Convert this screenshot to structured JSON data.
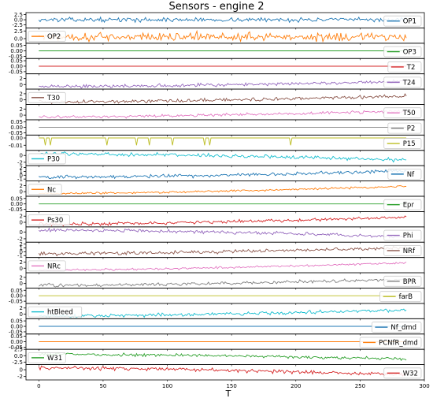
{
  "chart_data": {
    "type": "line",
    "title": "Sensors - engine 2",
    "xlabel": "T",
    "xlim": [
      -10,
      300
    ],
    "x_ticks": [
      0,
      50,
      100,
      150,
      200,
      250,
      300
    ],
    "n_cycles": 287,
    "grid": false,
    "legend_placement": "per-panel",
    "panels": [
      {
        "name": "OP1",
        "color": "#1f77b4",
        "legend_side": "right",
        "yticks": [
          2.5,
          0.0,
          -2.5
        ],
        "ylim": [
          -4,
          3.5
        ],
        "profile": {
          "base": 0,
          "trend": 0,
          "noise": 1.1,
          "spikes": []
        }
      },
      {
        "name": "OP2",
        "color": "#ff7f0e",
        "legend_side": "left",
        "yticks": [
          2.5,
          0.0
        ],
        "ylim": [
          -1.5,
          3.5
        ],
        "profile": {
          "base": 0.6,
          "trend": 0,
          "noise": 1.5,
          "spikes": []
        }
      },
      {
        "name": "OP3",
        "color": "#2ca02c",
        "legend_side": "right",
        "yticks": [
          0.05,
          0.0,
          -0.05
        ],
        "ylim": [
          -0.07,
          0.07
        ],
        "profile": {
          "base": 0,
          "trend": 0,
          "noise": 0,
          "spikes": []
        }
      },
      {
        "name": "T2",
        "color": "#d62728",
        "legend_side": "right",
        "yticks": [
          0.05,
          0.0,
          -0.05
        ],
        "ylim": [
          -0.07,
          0.07
        ],
        "profile": {
          "base": 0,
          "trend": 0,
          "noise": 0,
          "spikes": []
        }
      },
      {
        "name": "T24",
        "color": "#9467bd",
        "legend_side": "right",
        "yticks": [
          2,
          0
        ],
        "ylim": [
          -1.5,
          3.5
        ],
        "profile": {
          "base": -0.6,
          "trend": 1.6,
          "noise": 0.6,
          "spikes": []
        }
      },
      {
        "name": "T30",
        "color": "#8c564b",
        "legend_side": "left",
        "yticks": [
          2,
          0
        ],
        "ylim": [
          -1.5,
          3.5
        ],
        "profile": {
          "base": -0.7,
          "trend": 2.0,
          "noise": 0.6,
          "spikes": []
        }
      },
      {
        "name": "T50",
        "color": "#e377c2",
        "legend_side": "right",
        "yticks": [
          2,
          0
        ],
        "ylim": [
          -1.5,
          3.5
        ],
        "profile": {
          "base": -0.6,
          "trend": 2.0,
          "noise": 0.5,
          "spikes": []
        }
      },
      {
        "name": "P2",
        "color": "#7f7f7f",
        "legend_side": "right",
        "yticks": [
          0.05,
          0.0,
          -0.05
        ],
        "ylim": [
          -0.07,
          0.07
        ],
        "profile": {
          "base": 0,
          "trend": 0,
          "noise": 0,
          "spikes": []
        }
      },
      {
        "name": "P15",
        "color": "#bcbd22",
        "legend_side": "right",
        "yticks": [
          0.0,
          -0.01
        ],
        "ylim": [
          -0.017,
          0.004
        ],
        "profile": {
          "base": 0,
          "trend": 0,
          "noise": 0,
          "spikes": [
            5,
            9,
            53,
            76,
            86,
            104,
            129,
            133,
            196
          ]
        }
      },
      {
        "name": "P30",
        "color": "#17becf",
        "legend_side": "left",
        "yticks": [
          0,
          -2
        ],
        "ylim": [
          -3,
          1.5
        ],
        "profile": {
          "base": 0.5,
          "trend": -1.8,
          "noise": 0.55,
          "spikes": []
        }
      },
      {
        "name": "Nf",
        "color": "#1f77b4",
        "legend_side": "right",
        "yticks": [
          2,
          1,
          0,
          -1
        ],
        "ylim": [
          -1.5,
          2.5
        ],
        "profile": {
          "base": -0.5,
          "trend": 1.6,
          "noise": 0.5,
          "spikes": []
        }
      },
      {
        "name": "Nc",
        "color": "#ff7f0e",
        "legend_side": "left",
        "yticks": [
          2,
          0
        ],
        "ylim": [
          -1.5,
          3.5
        ],
        "profile": {
          "base": -0.6,
          "trend": 2.4,
          "noise": 0.35,
          "spikes": []
        }
      },
      {
        "name": "Epr",
        "color": "#2ca02c",
        "legend_side": "right",
        "yticks": [
          0.05,
          0.0,
          -0.05
        ],
        "ylim": [
          -0.07,
          0.07
        ],
        "profile": {
          "base": 0,
          "trend": 0,
          "noise": 0,
          "spikes": []
        }
      },
      {
        "name": "Ps30",
        "color": "#d62728",
        "legend_side": "left",
        "yticks": [
          2,
          0
        ],
        "ylim": [
          -1.5,
          3.5
        ],
        "profile": {
          "base": -0.6,
          "trend": 2.3,
          "noise": 0.55,
          "spikes": []
        }
      },
      {
        "name": "Phi",
        "color": "#9467bd",
        "legend_side": "right",
        "yticks": [
          0,
          -2
        ],
        "ylim": [
          -3,
          1.5
        ],
        "profile": {
          "base": 0.6,
          "trend": -2.0,
          "noise": 0.5,
          "spikes": []
        }
      },
      {
        "name": "NRf",
        "color": "#8c564b",
        "legend_side": "right",
        "yticks": [
          2,
          1,
          0,
          -1
        ],
        "ylim": [
          -1.5,
          2.5
        ],
        "profile": {
          "base": -0.5,
          "trend": 1.6,
          "noise": 0.5,
          "spikes": []
        }
      },
      {
        "name": "NRc",
        "color": "#e377c2",
        "legend_side": "left",
        "yticks": [
          2,
          0
        ],
        "ylim": [
          -1.5,
          3.5
        ],
        "profile": {
          "base": -0.6,
          "trend": 2.4,
          "noise": 0.35,
          "spikes": []
        }
      },
      {
        "name": "BPR",
        "color": "#7f7f7f",
        "legend_side": "right",
        "yticks": [
          2,
          0
        ],
        "ylim": [
          -1.5,
          3.5
        ],
        "profile": {
          "base": -0.6,
          "trend": 2.0,
          "noise": 0.55,
          "spikes": []
        }
      },
      {
        "name": "farB",
        "color": "#bcbd22",
        "legend_side": "right",
        "yticks": [
          0.05,
          0.0,
          -0.05
        ],
        "ylim": [
          -0.07,
          0.07
        ],
        "profile": {
          "base": 0,
          "trend": 0,
          "noise": 0,
          "spikes": []
        }
      },
      {
        "name": "htBleed",
        "color": "#17becf",
        "legend_side": "left",
        "yticks": [
          2,
          0
        ],
        "ylim": [
          -1.5,
          3.5
        ],
        "profile": {
          "base": -0.6,
          "trend": 2.0,
          "noise": 0.6,
          "spikes": []
        }
      },
      {
        "name": "Nf_dmd",
        "color": "#1f77b4",
        "legend_side": "right",
        "yticks": [
          0.05,
          0.0,
          -0.05
        ],
        "ylim": [
          -0.07,
          0.07
        ],
        "profile": {
          "base": 0,
          "trend": 0,
          "noise": 0,
          "spikes": []
        }
      },
      {
        "name": "PCNfR_dmd",
        "color": "#ff7f0e",
        "legend_side": "right",
        "yticks": [
          0.05,
          0.0,
          -0.05
        ],
        "ylim": [
          -0.07,
          0.07
        ],
        "profile": {
          "base": 0,
          "trend": 0,
          "noise": 0,
          "spikes": []
        }
      },
      {
        "name": "W31",
        "color": "#2ca02c",
        "legend_side": "left",
        "yticks": [
          2.5,
          0.0,
          -2.5
        ],
        "ylim": [
          -3.5,
          2.5
        ],
        "profile": {
          "base": 0.6,
          "trend": -1.9,
          "noise": 0.6,
          "spikes": []
        }
      },
      {
        "name": "W32",
        "color": "#d62728",
        "legend_side": "right",
        "yticks": [
          0,
          -2
        ],
        "ylim": [
          -3,
          1.5
        ],
        "profile": {
          "base": 0.5,
          "trend": -2.0,
          "noise": 0.6,
          "spikes": []
        }
      }
    ]
  }
}
